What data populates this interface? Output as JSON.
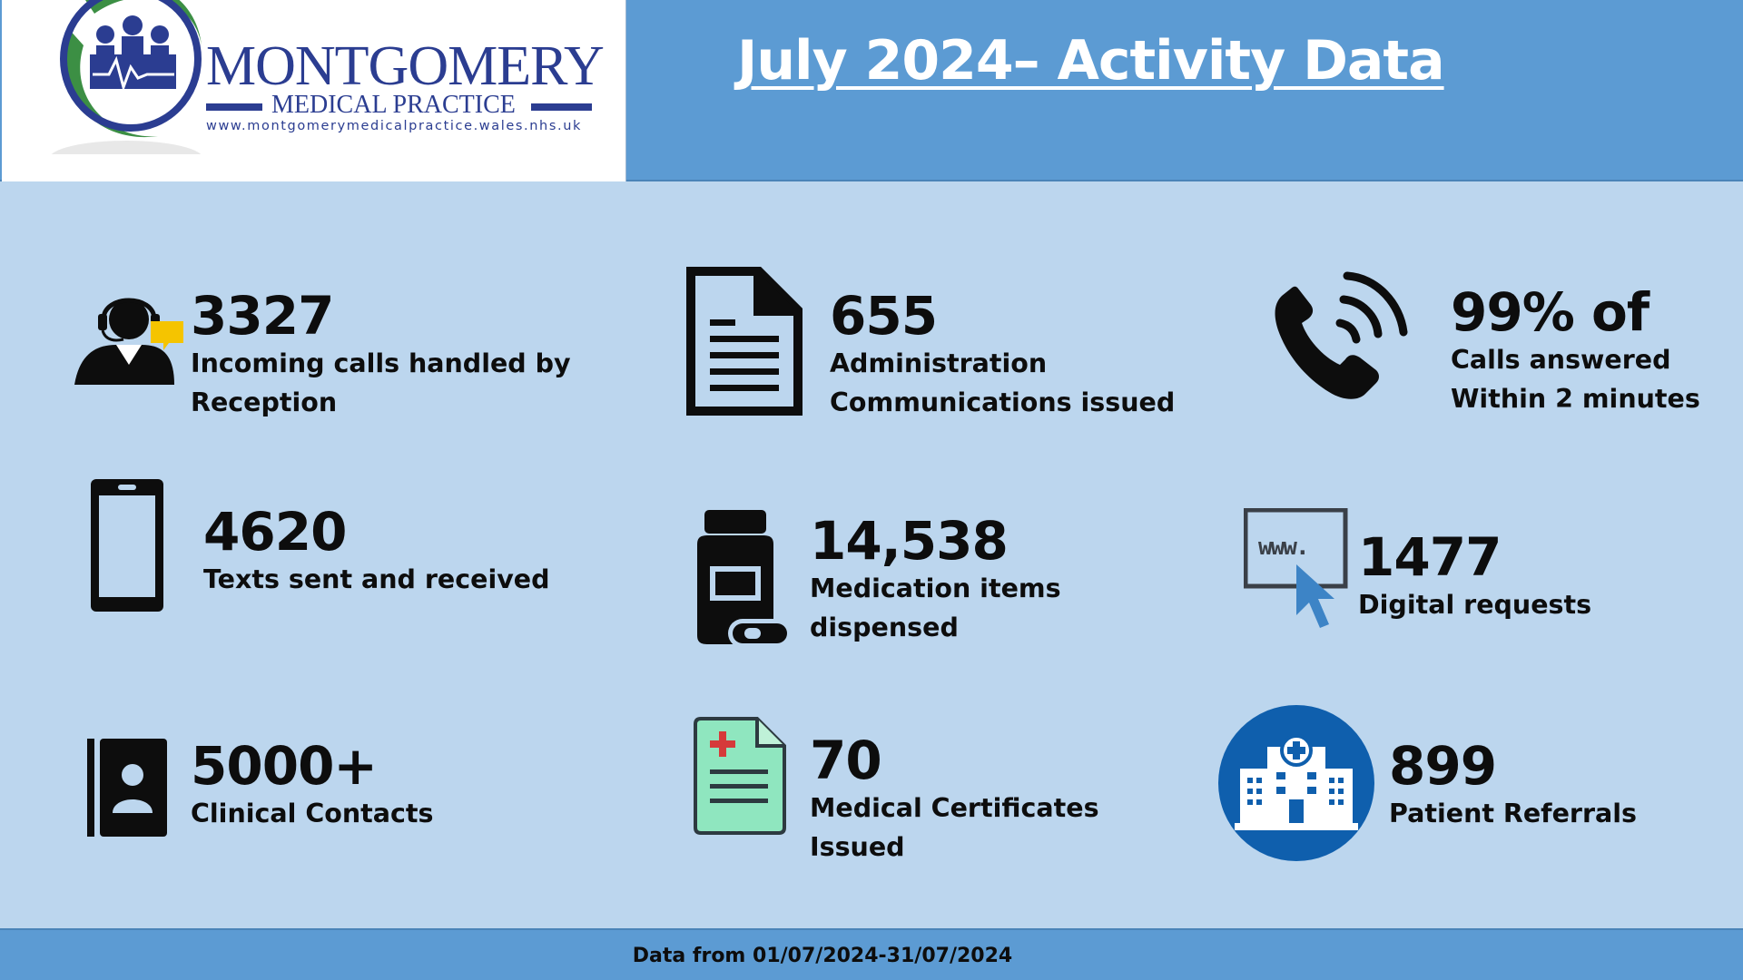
{
  "header": {
    "logo": {
      "name": "MONTGOMERY",
      "subtitle": "MEDICAL PRACTICE",
      "url": "www.montgomerymedicalpractice.wales.nhs.uk"
    },
    "title": "July 2024– Activity Data"
  },
  "stats": [
    {
      "icon": "call-center-agent-icon",
      "value": "3327",
      "label": "Incoming calls handled by\nReception"
    },
    {
      "icon": "document-icon",
      "value": "655",
      "label": "Administration\nCommunications issued"
    },
    {
      "icon": "phone-icon",
      "value": "99% of",
      "label": "Calls answered\nWithin 2 minutes"
    },
    {
      "icon": "mobile-phone-icon",
      "value": "4620",
      "label": "Texts sent and received"
    },
    {
      "icon": "medicine-bottle-icon",
      "value": "14,538",
      "label": "Medication items\ndispensed"
    },
    {
      "icon": "web-click-icon",
      "value": "1477",
      "label": "Digital requests"
    },
    {
      "icon": "contact-book-icon",
      "value": "5000+",
      "label": "Clinical Contacts"
    },
    {
      "icon": "medical-certificate-icon",
      "value": "70",
      "label": "Medical Certificates\nIssued"
    },
    {
      "icon": "hospital-icon",
      "value": "899",
      "label": "Patient Referrals"
    }
  ],
  "icon_text": {
    "www": "www."
  },
  "colors": {
    "header_blue": "#5c9bd3",
    "body_blue": "#bcd6ee",
    "logo_navy": "#2b3d91",
    "logo_green": "#3c8f44",
    "hospital_blue": "#0f5fad"
  },
  "footer": {
    "text": "Data from 01/07/2024-31/07/2024"
  }
}
